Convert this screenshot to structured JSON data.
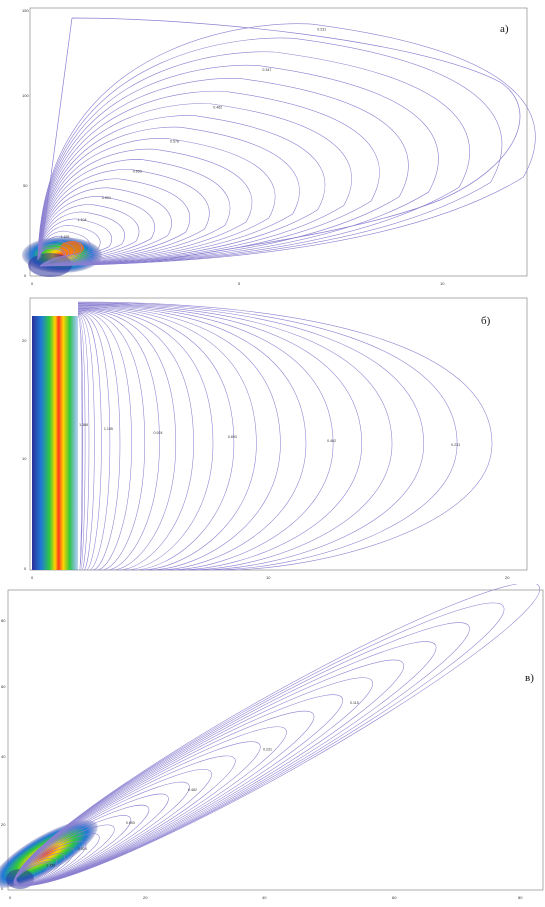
{
  "panels": [
    {
      "label": "а)",
      "chart_data": {
        "type": "contour",
        "description_axes": {
          "x_ticks": [
            "0",
            "5",
            "10"
          ],
          "y_ticks": [
            "0",
            "50",
            "100",
            "150"
          ]
        },
        "contour_labels": [
          "1.386",
          "1.155",
          "1.104",
          "0.924",
          "0.693",
          "0.578",
          "0.462",
          "0.347",
          "0.231",
          "0.115"
        ],
        "colorfill_near_origin": true
      }
    },
    {
      "label": "б)",
      "chart_data": {
        "type": "contour",
        "description_axes": {
          "x_ticks": [
            "0",
            "10",
            "20"
          ],
          "y_ticks": [
            "0",
            "10",
            "20"
          ]
        },
        "contour_labels": [
          "1.386",
          "1.155",
          "0.924",
          "0.693",
          "0.462",
          "0.231"
        ],
        "colorfill_band_left": true
      }
    },
    {
      "label": "в)",
      "chart_data": {
        "type": "contour",
        "description_axes": {
          "x_ticks": [
            "0",
            "20",
            "40",
            "60",
            "80"
          ],
          "y_ticks": [
            "0",
            "20",
            "40",
            "60",
            "80"
          ]
        },
        "contour_labels": [
          "1.155",
          "0.924",
          "0.693",
          "0.462",
          "0.231",
          "0.115"
        ],
        "colorfill_near_origin": true
      }
    }
  ]
}
